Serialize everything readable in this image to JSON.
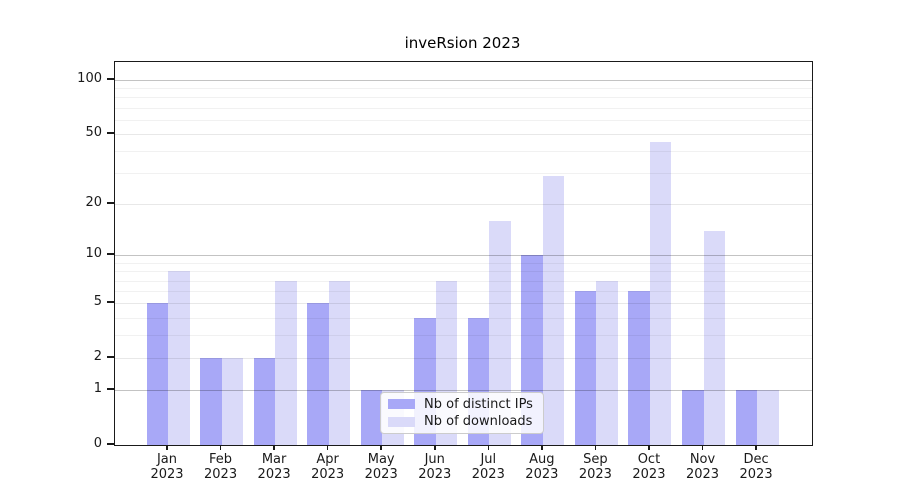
{
  "figure": {
    "background": "#ffffff"
  },
  "chart_data": {
    "type": "bar",
    "title": "inveRsion 2023",
    "categories": [
      "Jan 2023",
      "Feb 2023",
      "Mar 2023",
      "Apr 2023",
      "May 2023",
      "Jun 2023",
      "Jul 2023",
      "Aug 2023",
      "Sep 2023",
      "Oct 2023",
      "Nov 2023",
      "Dec 2023"
    ],
    "series": [
      {
        "name": "Nb of distinct IPs",
        "color": "#a8a8f7",
        "values": [
          5,
          2,
          2,
          5,
          1,
          4,
          4,
          10,
          6,
          6,
          1,
          1
        ]
      },
      {
        "name": "Nb of downloads",
        "color": "#dadaf9",
        "values": [
          8,
          2,
          7,
          7,
          1,
          7,
          16,
          29,
          7,
          45,
          14,
          1
        ]
      }
    ],
    "xlabel": "",
    "ylabel": "",
    "yscale": "log1p",
    "ylim": [
      0,
      126
    ],
    "yticks": [
      0,
      1,
      2,
      5,
      10,
      20,
      50,
      100
    ],
    "gridlines_major": [
      1,
      10,
      100
    ],
    "gridlines_medium": [
      2,
      5,
      20,
      50
    ],
    "gridlines_minor": [
      3,
      4,
      6,
      7,
      8,
      9,
      30,
      40,
      60,
      70,
      80,
      90
    ],
    "grid": true,
    "legend_position": "inside lower center-left"
  }
}
